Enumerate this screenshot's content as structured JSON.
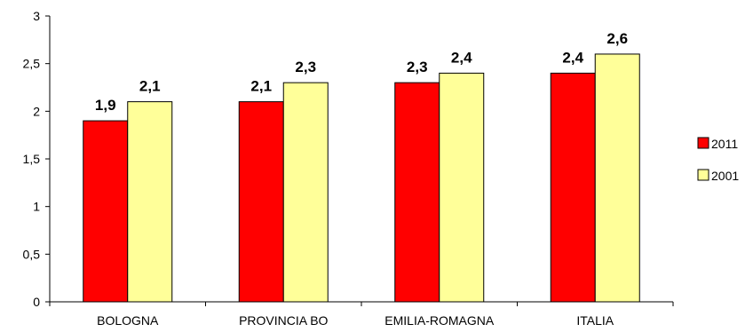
{
  "chart_data": {
    "type": "bar",
    "categories": [
      "BOLOGNA",
      "PROVINCIA BO",
      "EMILIA-ROMAGNA",
      "ITALIA"
    ],
    "series": [
      {
        "name": "2011",
        "values": [
          1.9,
          2.1,
          2.3,
          2.4
        ],
        "value_labels": [
          "1,9",
          "2,1",
          "2,3",
          "2,4"
        ],
        "color": "#ff0000"
      },
      {
        "name": "2001",
        "values": [
          2.1,
          2.3,
          2.4,
          2.6
        ],
        "value_labels": [
          "2,1",
          "2,3",
          "2,4",
          "2,6"
        ],
        "color": "#ffff99"
      }
    ],
    "ylim": [
      0,
      3
    ],
    "yticks": [
      0,
      0.5,
      1,
      1.5,
      2,
      2.5,
      3
    ],
    "ytick_labels": [
      "0",
      "0,5",
      "1",
      "1,5",
      "2",
      "2,5",
      "3"
    ],
    "grid": false,
    "legend_position": "right",
    "bar_border_color": "#000000"
  }
}
